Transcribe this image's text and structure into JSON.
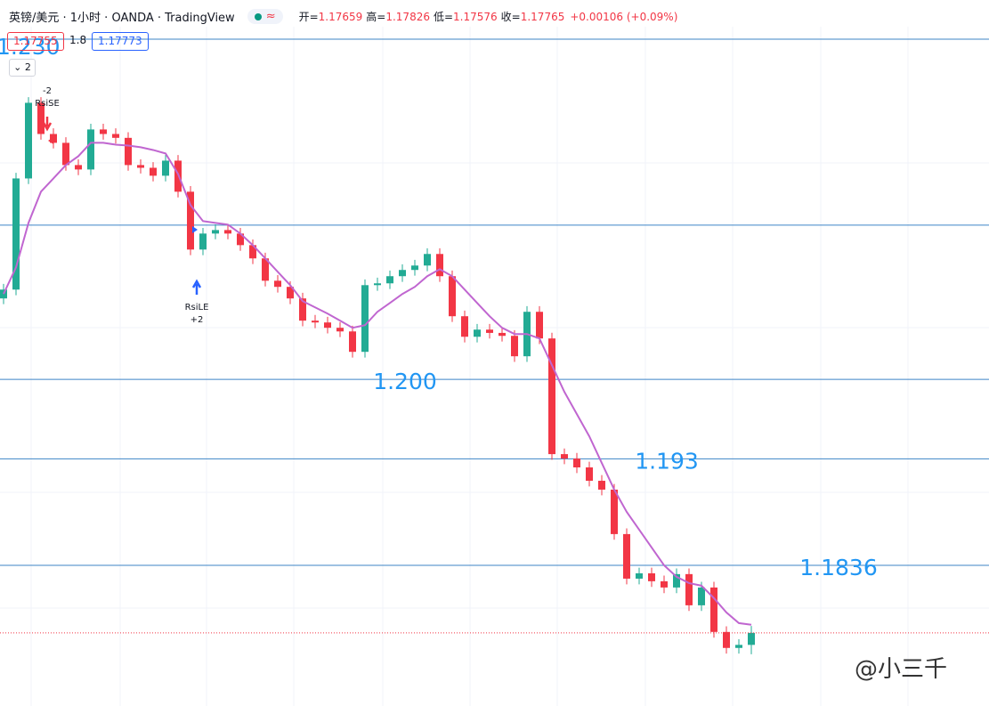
{
  "header": {
    "symbol": "英镑/美元 · 1小时 · OANDA · TradingView",
    "badge": "≈",
    "ohlc": [
      {
        "label": "开=",
        "value": "1.17659"
      },
      {
        "label": "高=",
        "value": "1.17826"
      },
      {
        "label": "低=",
        "value": "1.17576"
      },
      {
        "label": "收=",
        "value": "1.17765"
      }
    ],
    "change": "+0.00106 (+0.09%)",
    "price_boxes": [
      "1.17755",
      "1.8",
      "1.17773"
    ],
    "dropdown": "2"
  },
  "annotations": [
    {
      "lines": [
        "-2",
        "RsiSE"
      ]
    },
    {
      "lines": [
        "RsiLE",
        "+2"
      ]
    }
  ],
  "watermark": "@小三千",
  "chart_data": {
    "type": "candlestick",
    "up_color": "#22ab94",
    "down_color": "#f23645",
    "ylim": [
      1.1712,
      1.2311
    ],
    "open": [
      1.20714,
      1.20792,
      1.21772,
      1.22439,
      1.22164,
      1.22086,
      1.2189,
      1.21851,
      1.22204,
      1.22164,
      1.2213,
      1.2189,
      1.21866,
      1.21796,
      1.21929,
      1.21655,
      1.21145,
      1.21286,
      1.21317,
      1.21286,
      1.21184,
      1.21067,
      1.2087,
      1.20816,
      1.20714,
      1.20518,
      1.20502,
      1.20455,
      1.20423,
      1.20243,
      1.20831,
      1.20847,
      1.2091,
      1.20965,
      1.21004,
      1.21106,
      1.2091,
      1.20557,
      1.20376,
      1.20439,
      1.2041,
      1.20384,
      1.20204,
      1.20596,
      1.20361,
      1.19341,
      1.19302,
      1.19224,
      1.19106,
      1.19028,
      1.18636,
      1.18243,
      1.1829,
      1.1822,
      1.18165,
      1.18283,
      1.18008,
      1.18165,
      1.17773,
      1.17632,
      1.17659
    ],
    "high": [
      1.20842,
      1.21822,
      1.22489,
      1.22489,
      1.22214,
      1.22136,
      1.2194,
      1.22254,
      1.22254,
      1.22214,
      1.2218,
      1.2194,
      1.21916,
      1.21979,
      1.21979,
      1.21705,
      1.21336,
      1.21367,
      1.21367,
      1.21336,
      1.21234,
      1.21117,
      1.2092,
      1.20866,
      1.20764,
      1.20568,
      1.20552,
      1.20505,
      1.20473,
      1.20881,
      1.20897,
      1.2096,
      1.21015,
      1.21054,
      1.21156,
      1.21156,
      1.2096,
      1.20607,
      1.20489,
      1.20489,
      1.2046,
      1.20434,
      1.20646,
      1.20646,
      1.20411,
      1.19391,
      1.19352,
      1.19274,
      1.19156,
      1.19078,
      1.18686,
      1.1834,
      1.1834,
      1.1827,
      1.18333,
      1.18333,
      1.18215,
      1.18215,
      1.17823,
      1.17709,
      1.17826
    ],
    "low": [
      1.20664,
      1.20742,
      1.21722,
      1.22114,
      1.22036,
      1.2184,
      1.21801,
      1.21801,
      1.22114,
      1.2208,
      1.2184,
      1.21816,
      1.21746,
      1.21746,
      1.21605,
      1.21095,
      1.21095,
      1.21236,
      1.21236,
      1.21134,
      1.21017,
      1.2082,
      1.20766,
      1.20664,
      1.20468,
      1.20452,
      1.20405,
      1.20373,
      1.20193,
      1.20193,
      1.20781,
      1.20797,
      1.2086,
      1.20915,
      1.20954,
      1.2086,
      1.20507,
      1.20326,
      1.20326,
      1.2036,
      1.20334,
      1.20154,
      1.20154,
      1.20311,
      1.19291,
      1.19252,
      1.19174,
      1.19056,
      1.18978,
      1.18586,
      1.18193,
      1.18193,
      1.1817,
      1.18115,
      1.18115,
      1.17958,
      1.17958,
      1.17723,
      1.17582,
      1.17582,
      1.17576
    ],
    "close": [
      1.20792,
      1.21772,
      1.22439,
      1.22164,
      1.22086,
      1.2189,
      1.21851,
      1.22204,
      1.22164,
      1.2213,
      1.2189,
      1.21866,
      1.21796,
      1.21929,
      1.21655,
      1.21145,
      1.21286,
      1.21317,
      1.21286,
      1.21184,
      1.21067,
      1.2087,
      1.20816,
      1.20714,
      1.20518,
      1.20502,
      1.20455,
      1.20423,
      1.20243,
      1.20831,
      1.20847,
      1.2091,
      1.20965,
      1.21004,
      1.21106,
      1.2091,
      1.20557,
      1.20376,
      1.20439,
      1.2041,
      1.20384,
      1.20204,
      1.20596,
      1.20361,
      1.19341,
      1.19302,
      1.19224,
      1.19106,
      1.19028,
      1.18636,
      1.18243,
      1.1829,
      1.1822,
      1.18165,
      1.18283,
      1.18008,
      1.18165,
      1.17773,
      1.17632,
      1.17659,
      1.17765
    ],
    "ma": {
      "color": "#c066d0",
      "values": [
        1.20753,
        1.20988,
        1.2138,
        1.21655,
        1.21772,
        1.2189,
        1.21968,
        1.22086,
        1.22086,
        1.2207,
        1.22062,
        1.22047,
        1.22023,
        1.21992,
        1.21812,
        1.21537,
        1.21396,
        1.2138,
        1.21365,
        1.21286,
        1.21184,
        1.21067,
        1.20949,
        1.20831,
        1.2069,
        1.20635,
        1.2058,
        1.20518,
        1.20455,
        1.20478,
        1.20596,
        1.20674,
        1.20753,
        1.20816,
        1.2091,
        1.20972,
        1.2091,
        1.20792,
        1.20674,
        1.20557,
        1.20455,
        1.204,
        1.204,
        1.20361,
        1.20125,
        1.1989,
        1.19694,
        1.19498,
        1.19263,
        1.19028,
        1.18832,
        1.18675,
        1.18518,
        1.18361,
        1.18259,
        1.18204,
        1.18181,
        1.18071,
        1.17945,
        1.17851,
        1.17836
      ]
    },
    "levels": [
      {
        "value": 1.23,
        "label": "1.230"
      },
      {
        "value": 1.2136
      },
      {
        "value": 1.2,
        "label": "1.200"
      },
      {
        "value": 1.193,
        "label": "1.193"
      },
      {
        "value": 1.1836,
        "label": "1.1836"
      }
    ],
    "level_color": "#3d85c6",
    "level_label_color": "#2196f3",
    "price_line_color": "#f23645"
  }
}
